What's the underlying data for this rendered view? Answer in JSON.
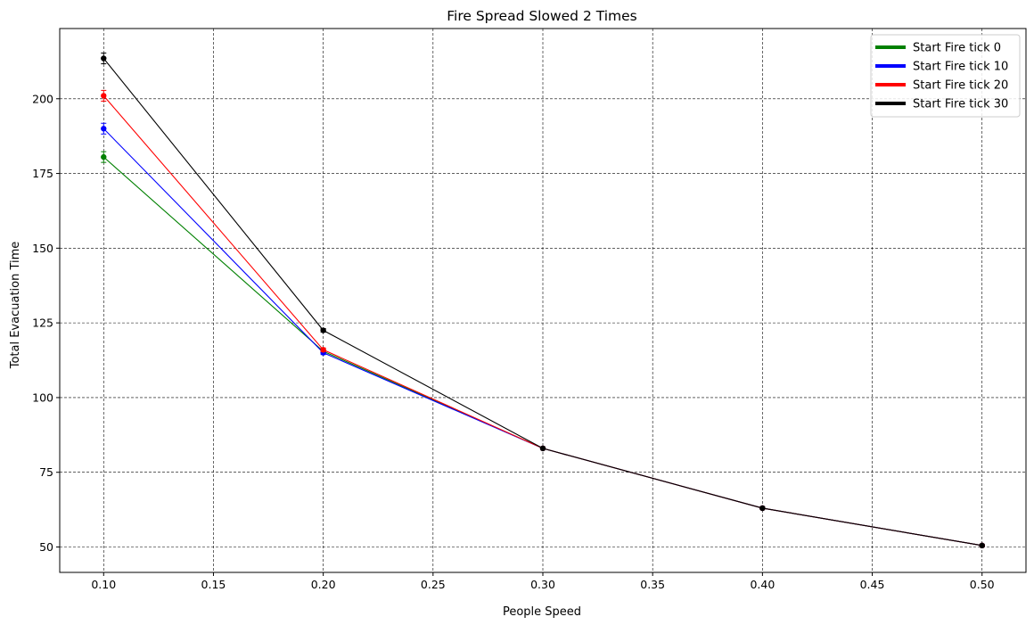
{
  "chart_data": {
    "type": "line",
    "title": "Fire Spread Slowed 2 Times",
    "xlabel": "People Speed",
    "ylabel": "Total Evacuation Time",
    "xlim": [
      0.08,
      0.52
    ],
    "ylim": [
      41.5,
      223.5
    ],
    "x": [
      0.1,
      0.2,
      0.3,
      0.4,
      0.5
    ],
    "xticks": [
      "0.10",
      "0.15",
      "0.20",
      "0.25",
      "0.30",
      "0.35",
      "0.40",
      "0.45",
      "0.50"
    ],
    "xtick_values": [
      0.1,
      0.15,
      0.2,
      0.25,
      0.3,
      0.35,
      0.4,
      0.45,
      0.5
    ],
    "yticks": [
      "50",
      "75",
      "100",
      "125",
      "150",
      "175",
      "200"
    ],
    "ytick_values": [
      50,
      75,
      100,
      125,
      150,
      175,
      200
    ],
    "grid": true,
    "legend_position": "top-right",
    "series": [
      {
        "name": "Start Fire tick 0",
        "color": "#008000",
        "values": [
          180.5,
          115.5,
          83,
          63,
          50.5
        ],
        "errors": [
          1.8,
          0.6,
          0.3,
          0.3,
          0.3
        ]
      },
      {
        "name": "Start Fire tick 10",
        "color": "#0000ff",
        "values": [
          190,
          115,
          83,
          63,
          50.5
        ],
        "errors": [
          1.8,
          0.6,
          0.3,
          0.3,
          0.3
        ]
      },
      {
        "name": "Start Fire tick 20",
        "color": "#ff0000",
        "values": [
          201,
          116,
          83,
          63,
          50.5
        ],
        "errors": [
          1.8,
          0.6,
          0.3,
          0.3,
          0.3
        ]
      },
      {
        "name": "Start Fire tick 30",
        "color": "#000000",
        "values": [
          213.5,
          122.5,
          83,
          63,
          50.5
        ],
        "errors": [
          1.8,
          0.6,
          0.3,
          0.3,
          0.3
        ]
      }
    ]
  }
}
